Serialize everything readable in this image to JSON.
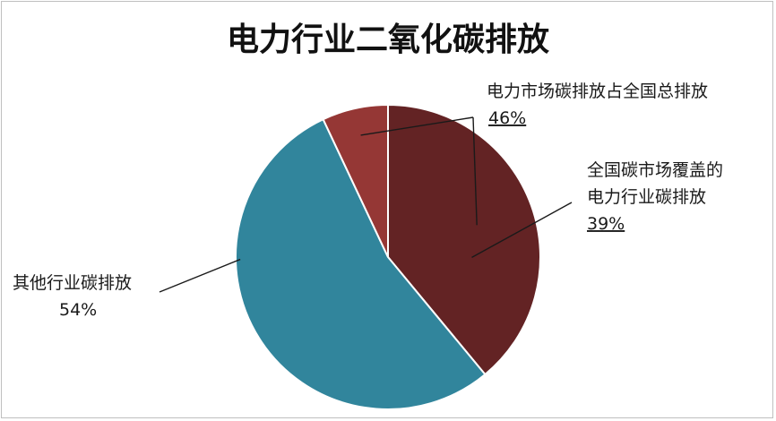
{
  "chart_data": {
    "type": "pie",
    "title": "电力行业二氧化碳排放",
    "slices": [
      {
        "label": "全国碳市场覆盖的电力行业碳排放",
        "label_lines": [
          "全国碳市场覆盖的",
          "电力行业碳排放"
        ],
        "value": 39,
        "value_label": "39%",
        "color": "#632324"
      },
      {
        "label": "其他行业碳排放",
        "label_lines": [
          "其他行业碳排放"
        ],
        "value": 54,
        "value_label": "54%",
        "color": "#31859c"
      },
      {
        "label": "",
        "label_lines": [],
        "value": 7,
        "value_label": "",
        "color": "#953735"
      }
    ],
    "group_annotation": {
      "label": "电力市场碳排放占全国总排放",
      "value": 46,
      "value_label": "46%"
    }
  }
}
